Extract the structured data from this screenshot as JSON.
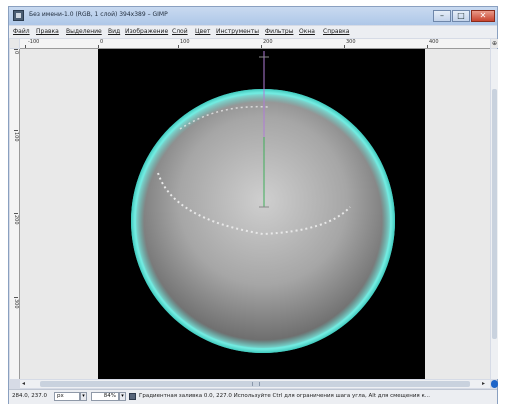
{
  "window": {
    "title": "Без имени-1.0 (RGB, 1 слой) 394x389 – GIMP",
    "controls": {
      "minimize": "–",
      "maximize": "□",
      "close": "✕"
    },
    "icon": "gimp-icon"
  },
  "menu": [
    "Файл",
    "Правка",
    "Выделение",
    "Вид",
    "Изображение",
    "Слой",
    "Цвет",
    "Инструменты",
    "Фильтры",
    "Окна",
    "Справка"
  ],
  "ruler_top": {
    "labels": [
      "-100",
      "0",
      "100",
      "200",
      "300",
      "400"
    ]
  },
  "ruler_left": {
    "labels": [
      "0",
      "100",
      "200",
      "300"
    ]
  },
  "canvas": {
    "background": "#000000",
    "sphere_center": "#c8c8c8",
    "sphere_edge": "#6e6e6e",
    "rim_color": "#5fe0d6",
    "guide_color_top": "#b07cd6",
    "guide_color_bottom": "#3fae5a"
  },
  "statusbar": {
    "coords": "284.0, 237.0",
    "unit": "px",
    "zoom": "84%",
    "message": "Градиентная заливка 0.0, 227.0 Используйте Ctrl для ограничения шага угла, Alt для смещения к..."
  }
}
